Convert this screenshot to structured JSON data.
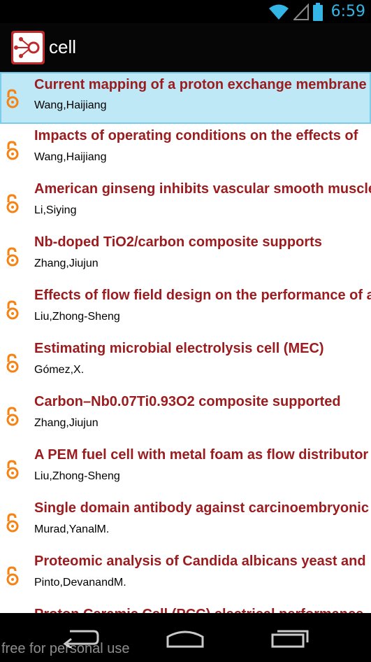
{
  "status_bar": {
    "time": "6:59",
    "icons": [
      "wifi-icon",
      "signal-icon",
      "battery-icon"
    ],
    "accent_color": "#33b5e5"
  },
  "action_bar": {
    "app_icon": "app-logo-icon",
    "title": "cell"
  },
  "list": {
    "selected_index": 0,
    "title_color": "#9b1c1f",
    "icon": "open-access-icon",
    "icon_color": "#f68212",
    "items": [
      {
        "title": "Current mapping of a proton exchange membrane",
        "author": "Wang,Haijiang"
      },
      {
        "title": "Impacts of operating conditions on the effects of",
        "author": "Wang,Haijiang"
      },
      {
        "title": "American ginseng inhibits vascular smooth muscle",
        "author": "Li,Siying"
      },
      {
        "title": "Nb-doped TiO2/carbon composite supports",
        "author": "Zhang,Jiujun"
      },
      {
        "title": "Effects of flow field design on the performance of a",
        "author": "Liu,Zhong-Sheng"
      },
      {
        "title": "Estimating microbial electrolysis cell (MEC)",
        "author": "Gómez,X."
      },
      {
        "title": "Carbon–Nb0.07Ti0.93O2 composite supported",
        "author": "Zhang,Jiujun"
      },
      {
        "title": "A PEM fuel cell with metal foam as flow distributor",
        "author": "Liu,Zhong-Sheng"
      },
      {
        "title": "Single domain antibody against carcinoembryonic",
        "author": "Murad,YanalM."
      },
      {
        "title": "Proteomic analysis of Candida albicans yeast and",
        "author": "Pinto,DevanandM."
      },
      {
        "title": "Proton Ceramic Cell (PCC) electrical performance",
        "author": ""
      }
    ]
  },
  "nav_bar": {
    "buttons": [
      "back-icon",
      "home-icon",
      "recent-apps-icon"
    ],
    "watermark": "free for personal use"
  }
}
